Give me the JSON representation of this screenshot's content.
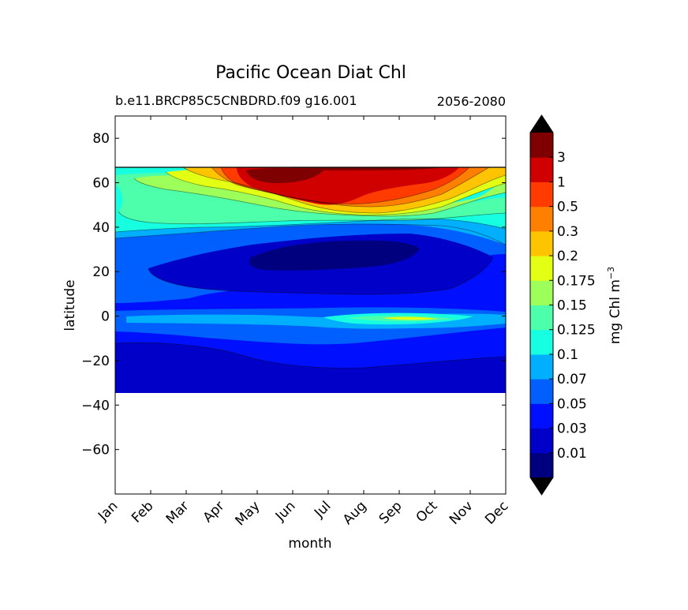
{
  "chart_data": {
    "type": "heatmap",
    "title": "Pacific Ocean Diat Chl",
    "subtitle_left": "b.e11.BRCP85C5CNBDRD.f09 g16.001",
    "subtitle_right": "2056-2080",
    "xlabel": "month",
    "ylabel": "latitude",
    "colorbar_label": "mg Chl m",
    "colorbar_label_exp": "−3",
    "x_categories": [
      "Jan",
      "Feb",
      "Mar",
      "Apr",
      "May",
      "Jun",
      "Jul",
      "Aug",
      "Sep",
      "Oct",
      "Nov",
      "Dec"
    ],
    "ylim": [
      -80,
      90
    ],
    "yticks": [
      80,
      60,
      40,
      20,
      0,
      -20,
      -40,
      -60
    ],
    "ytick_labels": [
      "80",
      "60",
      "40",
      "20",
      "0",
      "−20",
      "−40",
      "−60"
    ],
    "data_lat_range": [
      -34,
      67
    ],
    "levels": [
      "0.01",
      "0.03",
      "0.05",
      "0.07",
      "0.1",
      "0.125",
      "0.15",
      "0.175",
      "0.2",
      "0.3",
      "0.5",
      "1",
      "3"
    ],
    "level_colors": [
      "#00007f",
      "#0000c8",
      "#0010ff",
      "#0060ff",
      "#00b0ff",
      "#16ffe1",
      "#4dffaa",
      "#9dff5a",
      "#e3ff14",
      "#ffc400",
      "#ff8000",
      "#ff3b00",
      "#d10000",
      "#7f0000"
    ],
    "background": "#ffffff"
  }
}
